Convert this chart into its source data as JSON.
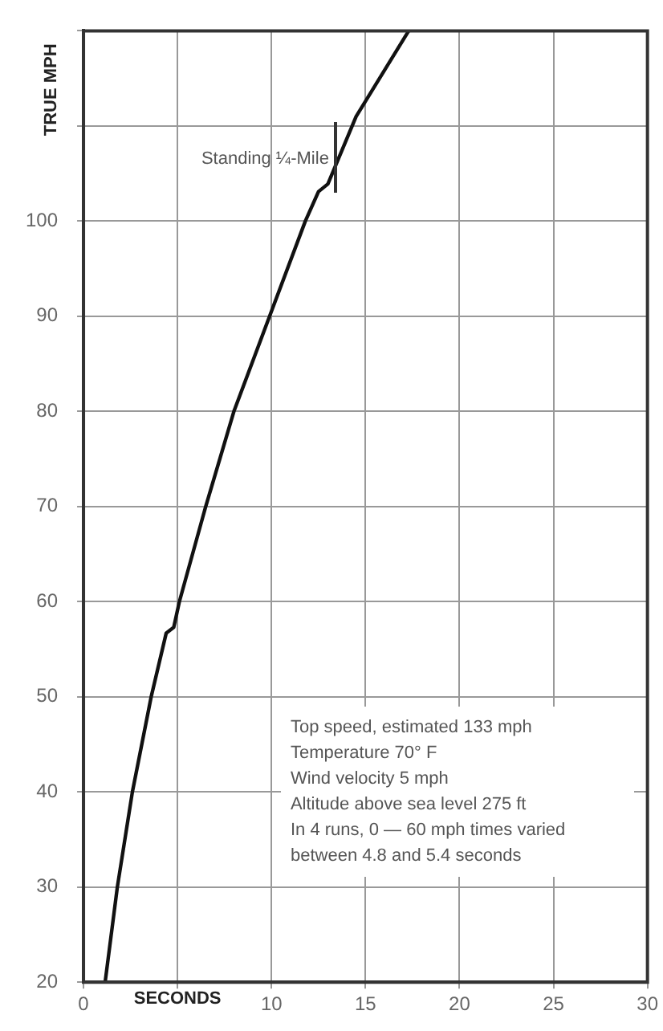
{
  "chart_data": {
    "type": "line",
    "xlabel": "SECONDS",
    "ylabel": "TRUE MPH",
    "x": [
      1.15,
      1.8,
      2.6,
      3.6,
      4.4,
      4.8,
      5.1,
      6.5,
      8.0,
      9.9,
      11.8,
      12.5,
      13.0,
      14.5,
      17.3
    ],
    "series": [
      {
        "color": "#111111",
        "values": [
          20,
          30,
          40,
          50,
          56.7,
          57.3,
          60,
          70,
          80,
          90,
          100,
          103.1,
          103.9,
          111,
          120
        ]
      }
    ],
    "xlim": [
      0,
      30
    ],
    "xticks": [
      0,
      {
        "value": 5,
        "label": null
      },
      10,
      15,
      20,
      25,
      30
    ],
    "ylim": [
      20,
      120
    ],
    "yticks": [
      20,
      30,
      40,
      50,
      60,
      70,
      80,
      90,
      100,
      {
        "value": 110,
        "label": null
      },
      {
        "value": 120,
        "label": null
      }
    ],
    "grid": true,
    "legend": false,
    "marker": "none",
    "line_style": "solid",
    "annotations": [
      {
        "text": "Standing ¼-Mile",
        "x": 13.4,
        "y": 106
      },
      "Top speed, estimated 133 mph",
      "Temperature 70° F",
      "Wind velocity 5 mph",
      "Altitude above sea level 275 ft",
      "In 4 runs, 0 — 60 mph times varied between 4.8 and 5.4 seconds"
    ]
  }
}
